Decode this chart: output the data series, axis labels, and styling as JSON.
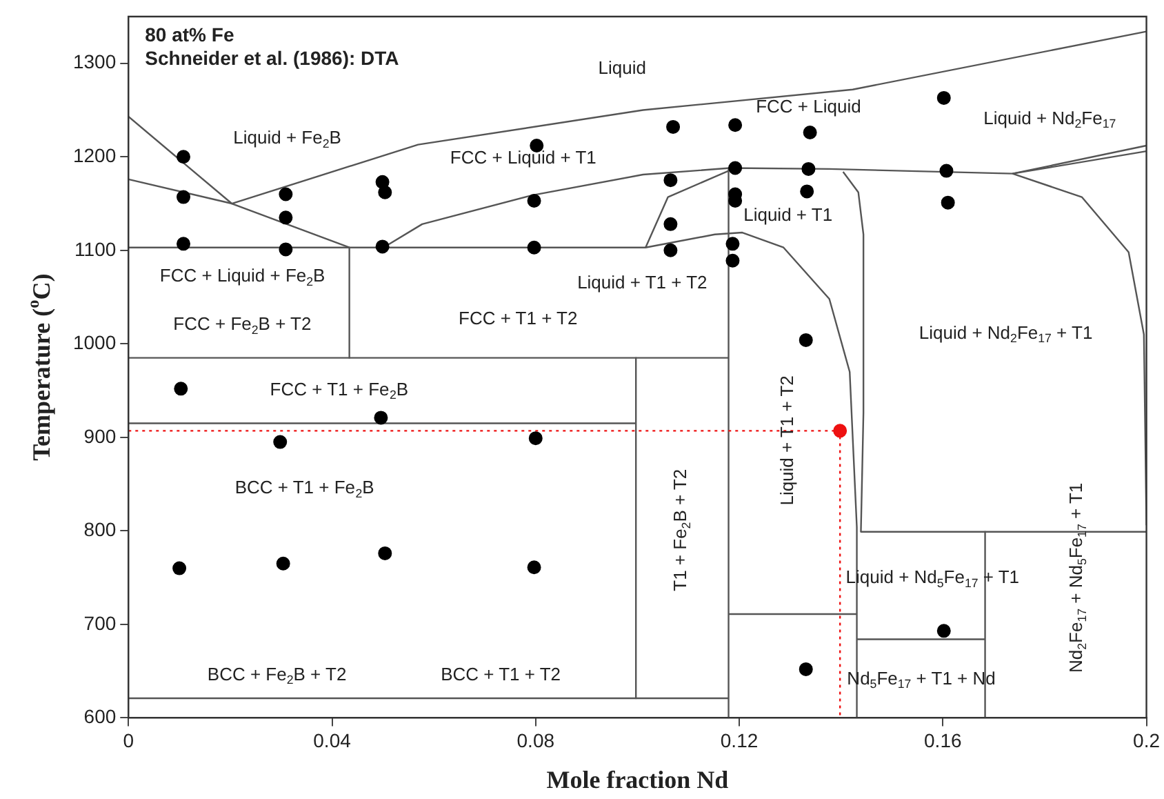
{
  "chart_data": {
    "type": "scatter",
    "xlabel": "Mole fraction Nd",
    "ylabel": "Temperature ($^{o}$C)",
    "xlim": [
      0,
      0.2
    ],
    "xticks": [
      0,
      0.04,
      0.08,
      0.12,
      0.16,
      0.2
    ],
    "ylim": [
      600,
      1350
    ],
    "yticks": [
      600,
      700,
      800,
      900,
      1000,
      1100,
      1200,
      1300
    ],
    "grid": false,
    "legend": false,
    "marker": "circle",
    "series": [
      {
        "color": "#000000",
        "x": [
          0.0108,
          0.0108,
          0.0108,
          0.0309,
          0.0309,
          0.0309,
          0.0499,
          0.0504,
          0.0499,
          0.0802,
          0.0797,
          0.0797,
          0.107,
          0.1065,
          0.1065,
          0.1065,
          0.1192,
          0.1192,
          0.1192,
          0.1192,
          0.1187,
          0.1187,
          0.1339,
          0.1336,
          0.1333,
          0.1331,
          0.1602,
          0.1607,
          0.161,
          0.0103,
          0.0496,
          0.0298,
          0.08,
          0.01,
          0.0304,
          0.0504,
          0.0797,
          0.1602,
          0.1331
        ],
        "values": [
          1200,
          1157,
          1107,
          1160,
          1135,
          1101,
          1173,
          1162,
          1104,
          1212,
          1153,
          1103,
          1232,
          1175,
          1128,
          1100,
          1234,
          1188,
          1160,
          1153,
          1107,
          1089,
          1226,
          1187,
          1163,
          1004,
          1263,
          1185,
          1151,
          952,
          921,
          895,
          899,
          760,
          765,
          776,
          761,
          693,
          652
        ]
      },
      {
        "color": "#ee1111",
        "x": [
          0.1398
        ],
        "values": [
          907
        ]
      },
      {
        "type": "line",
        "marker": "none",
        "color": "#ee1111",
        "line_style": "dotted",
        "x": [
          0,
          0.1398,
          0.1398
        ],
        "values": [
          907,
          907,
          600
        ]
      },
      {
        "type": "line",
        "marker": "none",
        "color": "#555555",
        "x": [
          0,
          0.0203,
          0.0569,
          0.1011,
          0.1423,
          0.2
        ],
        "values": [
          1243,
          1150,
          1213,
          1250,
          1272,
          1334
        ]
      },
      {
        "type": "line",
        "marker": "none",
        "color": "#555555",
        "x": [
          0,
          0.0203,
          0.0434
        ],
        "values": [
          1176,
          1150,
          1103
        ]
      },
      {
        "type": "line",
        "marker": "none",
        "color": "#555555",
        "x": [
          0.0501,
          0.0577,
          0.0794,
          0.1011,
          0.1182,
          0.1377,
          0.1737,
          0.2
        ],
        "values": [
          1103,
          1128,
          1159,
          1181,
          1188,
          1187,
          1182,
          1212
        ]
      },
      {
        "type": "line",
        "marker": "none",
        "color": "#555555",
        "x": [
          0.1737,
          0.2
        ],
        "values": [
          1182,
          1206
        ]
      },
      {
        "type": "line",
        "marker": "none",
        "color": "#555555",
        "x": [
          0.1016,
          0.106,
          0.1179
        ],
        "values": [
          1103,
          1157,
          1185
        ]
      },
      {
        "type": "line",
        "marker": "none",
        "color": "#555555",
        "x": [
          0,
          0.1016,
          0.1152,
          0.1206,
          0.1287,
          0.1377,
          0.1417,
          0.1431,
          0.1431
        ],
        "values": [
          1103,
          1103,
          1117,
          1119,
          1103,
          1048,
          970,
          804,
          600
        ]
      },
      {
        "type": "line",
        "marker": "none",
        "color": "#555555",
        "x": [
          0.1404,
          0.1434,
          0.1444,
          0.1444,
          0.1439,
          0.2
        ],
        "values": [
          1184,
          1162,
          1117,
          926,
          799,
          799
        ]
      },
      {
        "type": "line",
        "marker": "none",
        "color": "#555555",
        "x": [
          0.1737,
          0.1873,
          0.1965,
          0.1995,
          0.2
        ],
        "values": [
          1182,
          1157,
          1098,
          1010,
          806
        ]
      },
      {
        "type": "line",
        "marker": "none",
        "color": "#555555",
        "x": [
          0.0434,
          0.0434
        ],
        "values": [
          1103,
          985
        ]
      },
      {
        "type": "line",
        "marker": "none",
        "color": "#555555",
        "x": [
          0,
          0.1179
        ],
        "values": [
          985,
          985
        ]
      },
      {
        "type": "line",
        "marker": "none",
        "color": "#555555",
        "x": [
          0.1179,
          0.1179
        ],
        "values": [
          1188,
          600
        ]
      },
      {
        "type": "line",
        "marker": "none",
        "color": "#555555",
        "x": [
          0.0997,
          0.0997
        ],
        "values": [
          985,
          621
        ]
      },
      {
        "type": "line",
        "marker": "none",
        "color": "#555555",
        "x": [
          0,
          0.0997
        ],
        "values": [
          915,
          915
        ]
      },
      {
        "type": "line",
        "marker": "none",
        "color": "#555555",
        "x": [
          0,
          0.1179
        ],
        "values": [
          621,
          621
        ]
      },
      {
        "type": "line",
        "marker": "none",
        "color": "#555555",
        "x": [
          0.1179,
          0.1431
        ],
        "values": [
          711,
          711
        ]
      },
      {
        "type": "line",
        "marker": "none",
        "color": "#555555",
        "x": [
          0.1683,
          0.1683
        ],
        "values": [
          799,
          600
        ]
      },
      {
        "type": "line",
        "marker": "none",
        "color": "#555555",
        "x": [
          0.1431,
          0.1683
        ],
        "values": [
          684,
          684
        ]
      }
    ],
    "annotations": [
      "80 at% Fe",
      "Schneider et al. (1986): DTA",
      "Liquid",
      "Liquid + Fe$_{2}$B",
      "FCC + Liquid + T1",
      "FCC + Liquid",
      "Liquid + Nd$_{2}$Fe$_{17}$",
      "Liquid + T1",
      "FCC + Liquid + Fe$_{2}$B",
      "Liquid + T1 + T2",
      "FCC + Fe$_{2}$B + T2",
      "FCC + T1 + T2",
      "Liquid + Nd$_{2}$Fe$_{17}$ + T1",
      "FCC + T1 + Fe$_{2}$B",
      "BCC + T1 + Fe$_{2}$B",
      "Liquid + T1 + T2",
      "T1 + Fe$_{2}$B + T2",
      "Liquid + Nd$_{5}$Fe$_{17}$ + T1",
      "Nd$_{2}$Fe$_{17}$ + Nd$_{5}$Fe$_{17}$ + T1",
      "BCC + Fe$_{2}$B + T2",
      "BCC + T1 + T2",
      "Nd$_{5}$Fe$_{17}$ + T1 + Nd"
    ]
  }
}
